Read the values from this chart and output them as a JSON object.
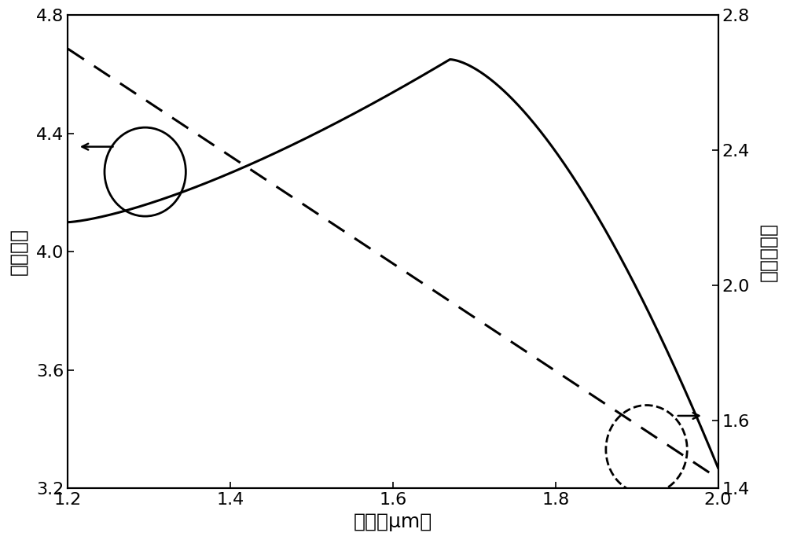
{
  "xlim": [
    1.2,
    2.0
  ],
  "ylim_left": [
    3.2,
    4.8
  ],
  "ylim_right": [
    1.4,
    2.8
  ],
  "xlabel": "波长（μm）",
  "ylabel_left": "群折射率",
  "ylabel_right": "有效折射率",
  "xticks": [
    1.2,
    1.4,
    1.6,
    1.8,
    2.0
  ],
  "yticks_left": [
    3.2,
    3.6,
    4.0,
    4.4,
    4.8
  ],
  "yticks_right": [
    1.4,
    1.6,
    2.0,
    2.4,
    2.8
  ],
  "line_color": "#000000",
  "background_color": "#ffffff",
  "xlabel_fontsize": 18,
  "ylabel_fontsize": 18,
  "tick_fontsize": 16,
  "figsize": [
    10.0,
    6.87
  ]
}
